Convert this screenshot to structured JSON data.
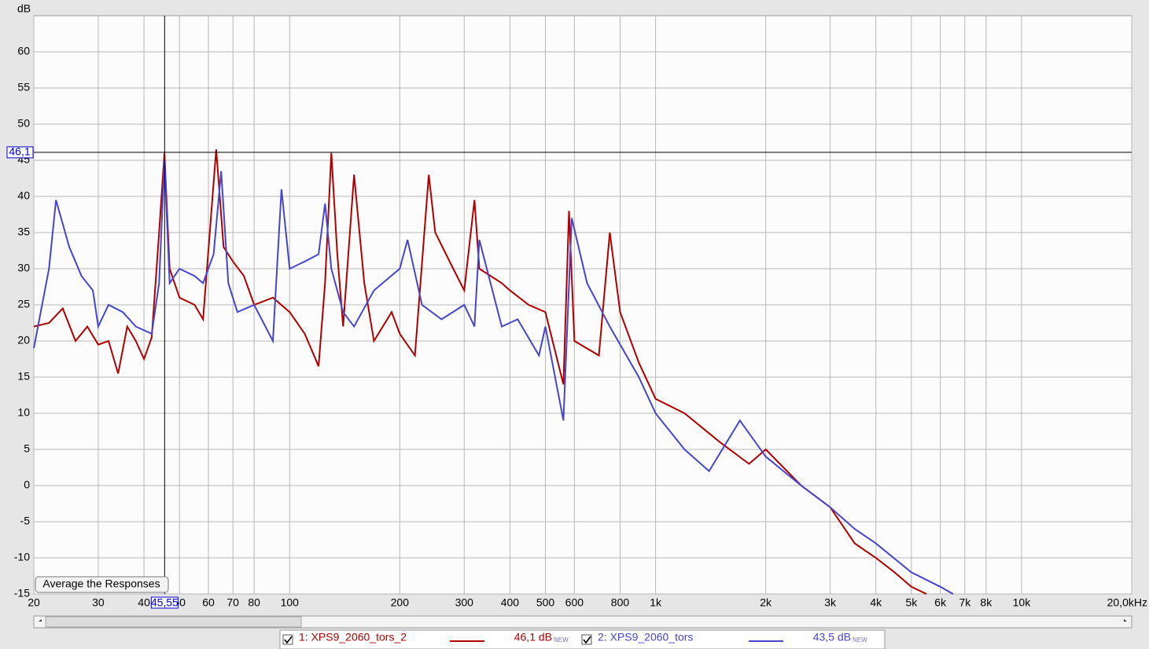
{
  "chart_data": {
    "type": "line",
    "y_label": "dB",
    "log_x": true,
    "grid": true,
    "xlim": [
      20,
      20000
    ],
    "ylim": [
      -15,
      65
    ],
    "xticks": [
      20,
      30,
      40,
      50,
      60,
      70,
      80,
      100,
      200,
      300,
      400,
      500,
      600,
      800,
      {
        "value": 1000,
        "label": "1k"
      },
      {
        "value": 2000,
        "label": "2k"
      },
      {
        "value": 3000,
        "label": "3k"
      },
      {
        "value": 4000,
        "label": "4k"
      },
      {
        "value": 5000,
        "label": "5k"
      },
      {
        "value": 6000,
        "label": "6k"
      },
      {
        "value": 7000,
        "label": "7k"
      },
      {
        "value": 8000,
        "label": "8k"
      },
      {
        "value": 10000,
        "label": "10k"
      },
      {
        "value": 20000,
        "label": "20,0kHz"
      }
    ],
    "yticks": [
      -15,
      -10,
      -5,
      0,
      5,
      10,
      15,
      20,
      25,
      30,
      35,
      40,
      45,
      50,
      55,
      60
    ],
    "cursor": {
      "x": {
        "value": 45.55,
        "label": "45,55"
      },
      "y": {
        "value": 46.1,
        "label": "46,1"
      }
    },
    "button": "Average the Responses",
    "new_tag": "NEW",
    "series": [
      {
        "name": "1: XPS9_2060_tors_2",
        "color": "#b00000",
        "checked": true,
        "readout": "46,1 dB",
        "x": [
          20,
          22,
          24,
          26,
          28,
          30,
          32,
          34,
          36,
          38,
          40,
          42,
          44,
          45.5,
          47,
          50,
          55,
          58,
          63,
          66,
          70,
          75,
          80,
          90,
          100,
          110,
          120,
          125,
          130,
          135,
          140,
          150,
          160,
          170,
          190,
          200,
          220,
          240,
          250,
          280,
          300,
          320,
          330,
          380,
          400,
          450,
          500,
          560,
          580,
          600,
          700,
          750,
          800,
          900,
          1000,
          1200,
          1500,
          1800,
          2000,
          2500,
          3000,
          3500,
          4000,
          4500,
          5000,
          5500
        ],
        "values": [
          22,
          22.5,
          24.5,
          20,
          22,
          19.5,
          20,
          15.5,
          22,
          20,
          17.5,
          20.5,
          35,
          46,
          30,
          26,
          25,
          23,
          46.5,
          33,
          31,
          29,
          25,
          26,
          24,
          21,
          16.5,
          28,
          46,
          32,
          22,
          43,
          28,
          20,
          24,
          21,
          18,
          43,
          35,
          30,
          27,
          39.5,
          30,
          28,
          27,
          25,
          24,
          14,
          38,
          20,
          18,
          35,
          24,
          17,
          12,
          10,
          6,
          3,
          5,
          0,
          -3,
          -8,
          -10,
          -12,
          -14,
          -15
        ]
      },
      {
        "name": "2: XPS9_2060_tors",
        "color": "#4646cc",
        "checked": true,
        "readout": "43,5 dB",
        "x": [
          20,
          22,
          23,
          25,
          27,
          29,
          30,
          32,
          35,
          38,
          42,
          44,
          45.5,
          47,
          50,
          55,
          58,
          62,
          65,
          68,
          72,
          80,
          90,
          95,
          100,
          110,
          120,
          125,
          130,
          140,
          150,
          170,
          200,
          210,
          230,
          260,
          300,
          320,
          330,
          380,
          420,
          480,
          500,
          560,
          590,
          650,
          750,
          900,
          1000,
          1200,
          1400,
          1700,
          2000,
          2500,
          3000,
          3500,
          4000,
          5000,
          6000,
          6500
        ],
        "values": [
          19,
          30,
          39.5,
          33,
          29,
          27,
          22,
          25,
          24,
          22,
          21,
          28,
          45,
          28,
          30,
          29,
          28,
          32,
          43.5,
          28,
          24,
          25,
          20,
          41,
          30,
          31,
          32,
          39,
          30,
          24,
          22,
          27,
          30,
          34,
          25,
          23,
          25,
          22,
          34,
          22,
          23,
          18,
          22,
          9,
          37,
          28,
          22,
          15,
          10,
          5,
          2,
          9,
          4,
          0,
          -3,
          -6,
          -8,
          -12,
          -14,
          -15
        ]
      }
    ]
  }
}
